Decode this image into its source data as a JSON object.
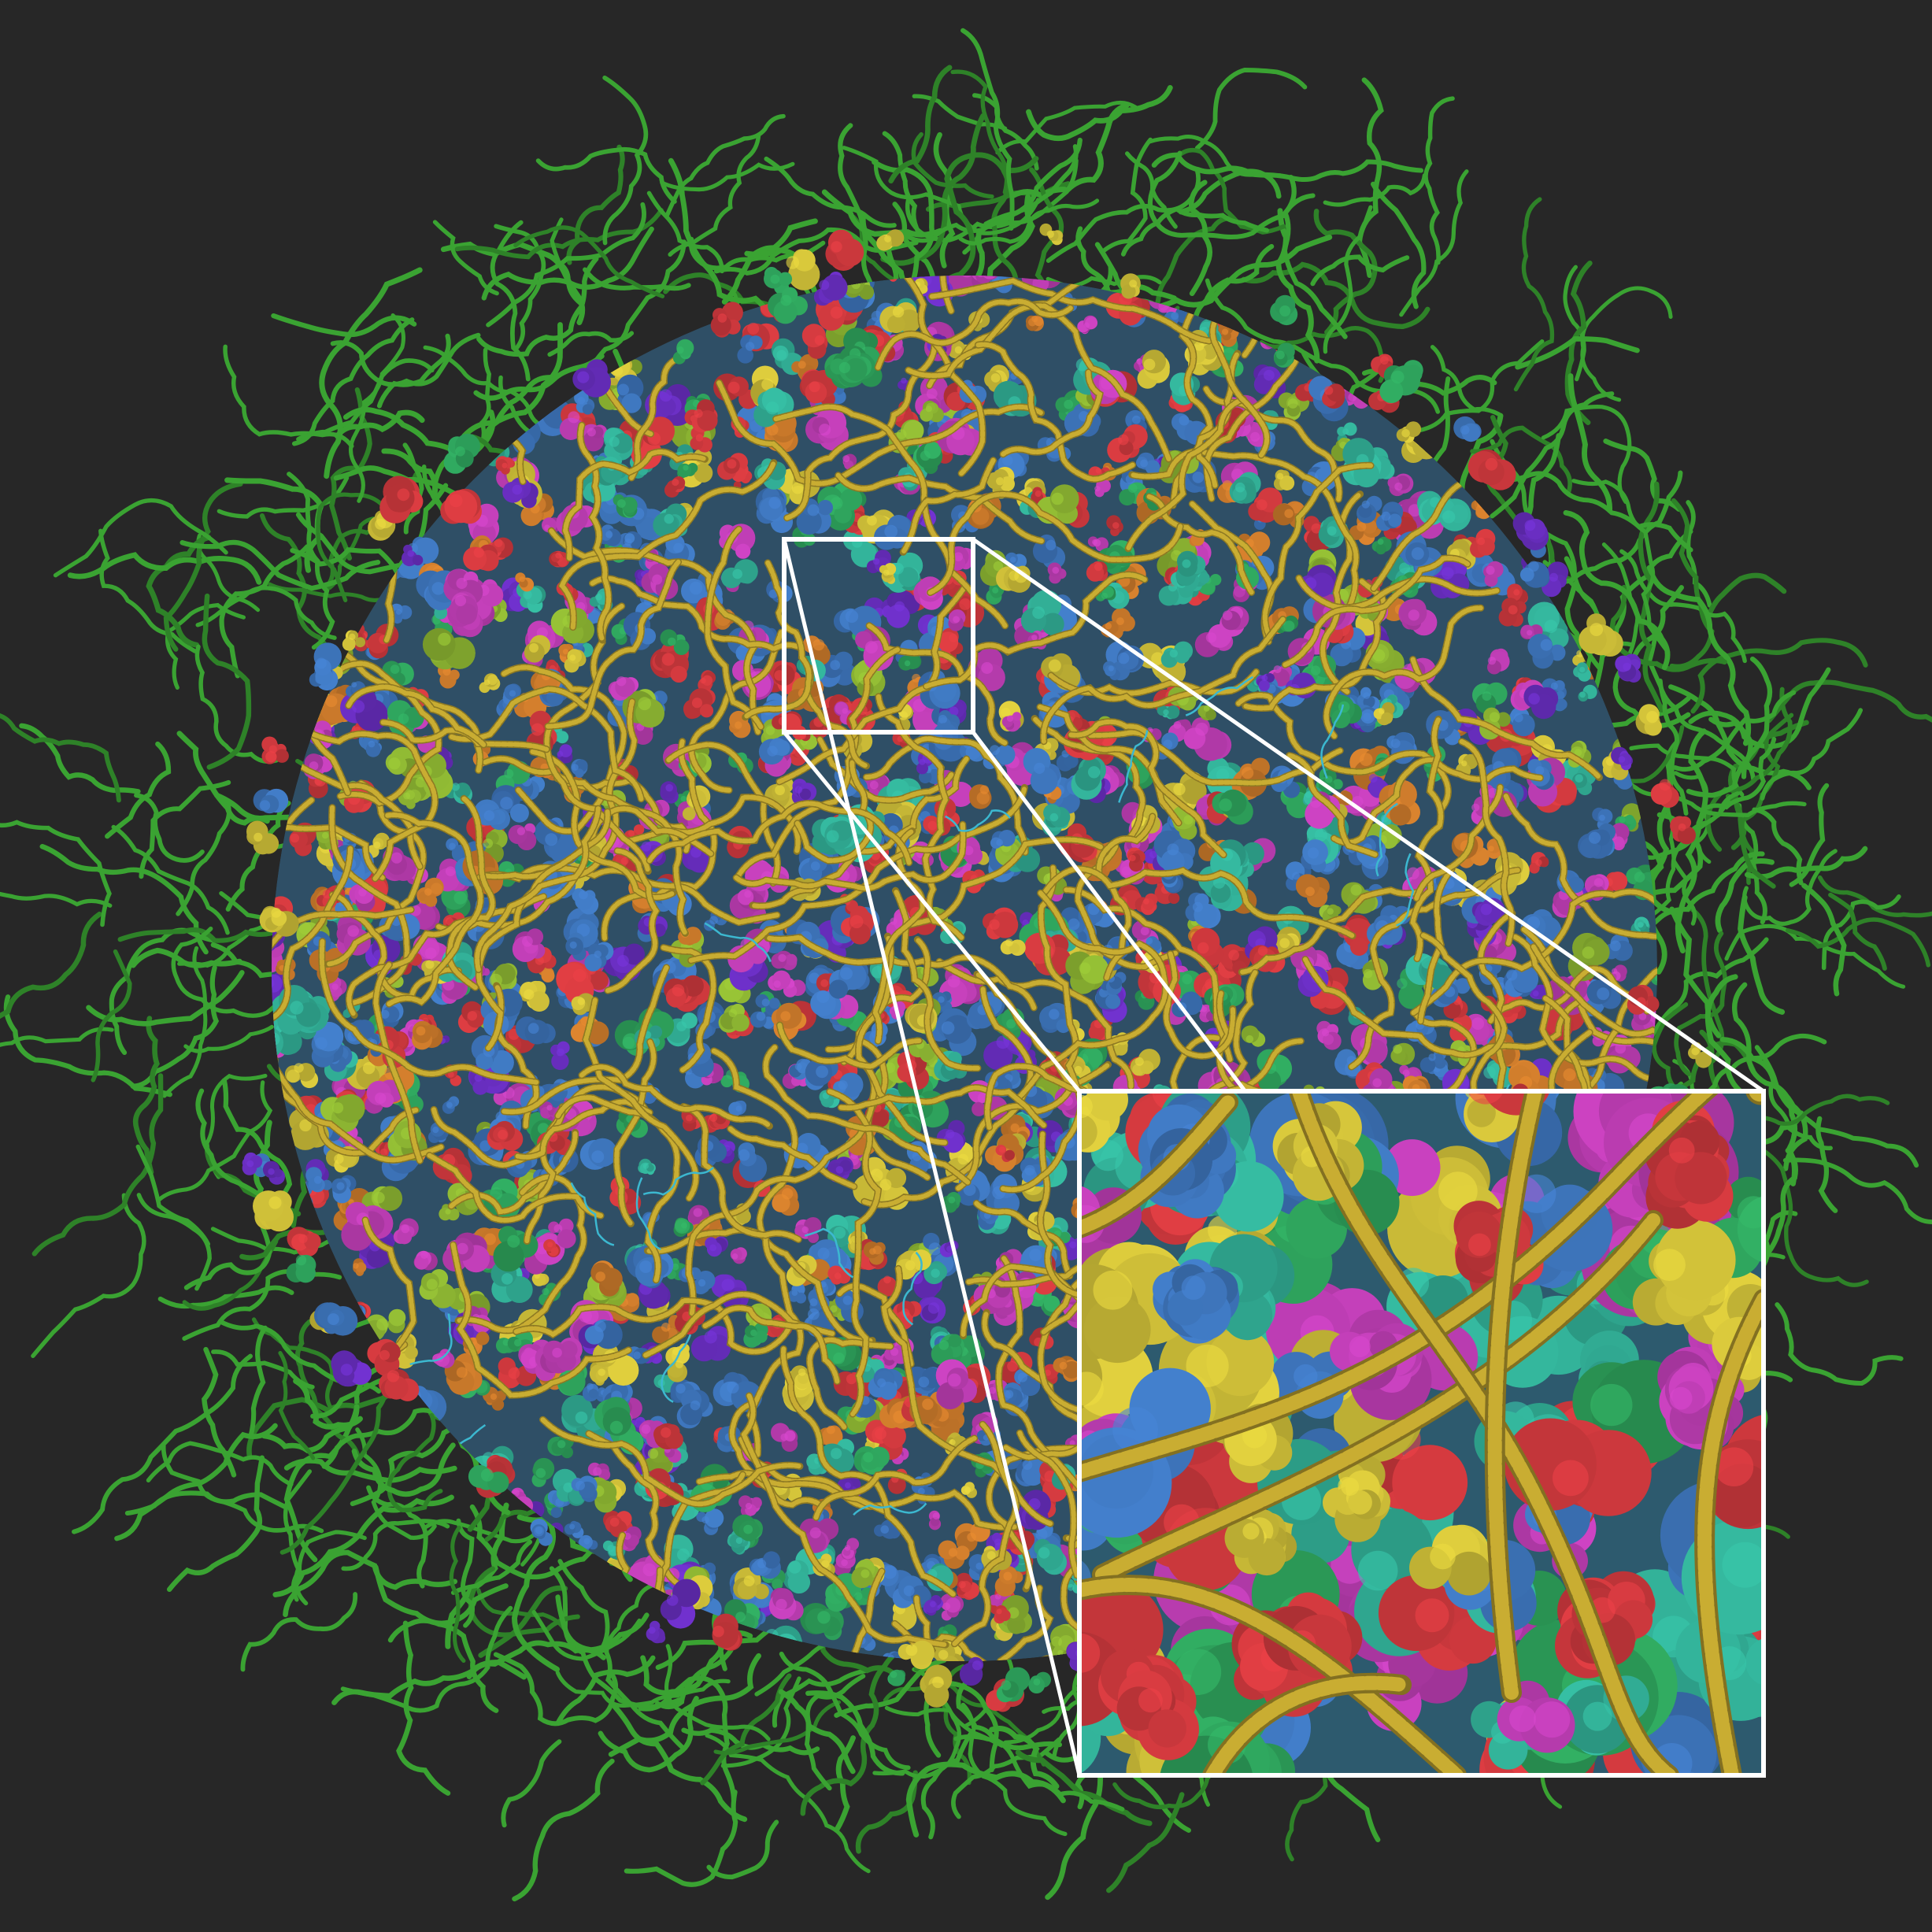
{
  "scene": {
    "subject": "cell-cytoplasm-mesoscale-model",
    "background_color": "#272727",
    "palette": {
      "outer_fibers": "#3aa332",
      "inner_filaments": "#c9ad32",
      "blue_proteins": "#3f78c0",
      "magenta_proteins": "#c23fb8",
      "red_proteins": "#d33a3f",
      "yellow_proteins": "#d4c43a",
      "teal_proteins": "#33b39a",
      "green_proteins": "#2fa65e",
      "purple_proteins": "#6b2fc4",
      "orange_proteins": "#d07d2c",
      "lime_proteins": "#8fb833",
      "cyan_strands": "#3cb8d0"
    },
    "zoom_box_stroke": "#ffffff"
  }
}
